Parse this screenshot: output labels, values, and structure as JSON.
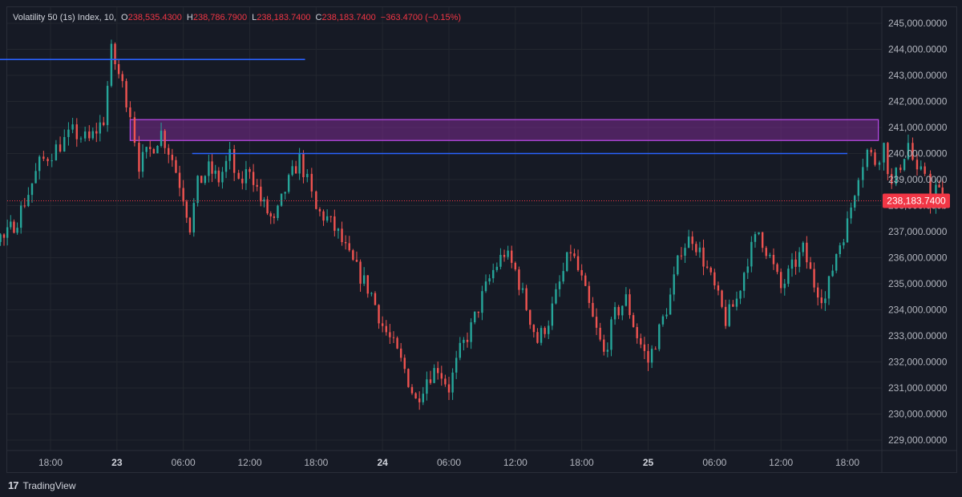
{
  "legend": {
    "symbol": "Volatility 50 (1s) Index, 10,",
    "o_label": "O",
    "o_value": "238,535.4300",
    "h_label": "H",
    "h_value": "238,786.7900",
    "l_label": "L",
    "l_value": "238,183.7400",
    "c_label": "C",
    "c_value": "238,183.7400",
    "change": "−363.4700 (−0.15%)"
  },
  "brand": {
    "logo": "17",
    "name": "TradingView"
  },
  "chart_data": {
    "type": "candlestick",
    "ylim": [
      228500,
      245500
    ],
    "y_ticks": [
      229000,
      230000,
      231000,
      232000,
      233000,
      234000,
      235000,
      236000,
      237000,
      238000,
      239000,
      240000,
      241000,
      242000,
      243000,
      244000,
      245000
    ],
    "y_tick_labels": [
      "229,000.0000",
      "230,000.0000",
      "231,000.0000",
      "232,000.0000",
      "233,000.0000",
      "234,000.0000",
      "235,000.0000",
      "236,000.0000",
      "237,000.0000",
      "238,000.0000",
      "239,000.0000",
      "240,000.0000",
      "241,000.0000",
      "242,000.0000",
      "243,000.0000",
      "244,000.0000",
      "245,000.0000"
    ],
    "x_range_hours": [
      -20.6,
      68.2
    ],
    "x_ticks": [
      {
        "h": -6,
        "label": "18:00"
      },
      {
        "h": 0,
        "label": "23"
      },
      {
        "h": 6,
        "label": "06:00"
      },
      {
        "h": 12,
        "label": "12:00"
      },
      {
        "h": 18,
        "label": "18:00"
      },
      {
        "h": 24,
        "label": "24"
      },
      {
        "h": 30,
        "label": "06:00"
      },
      {
        "h": 36,
        "label": "12:00"
      },
      {
        "h": 42,
        "label": "18:00"
      },
      {
        "h": 48,
        "label": "25"
      },
      {
        "h": 54,
        "label": "06:00"
      },
      {
        "h": 60,
        "label": "12:00"
      },
      {
        "h": 66,
        "label": "18:00"
      }
    ],
    "bold_tick_labels": [
      "23",
      "24",
      "25"
    ],
    "last_price": 238183.74,
    "last_price_label": "238,183.7400",
    "path_points": [
      [
        -20.6,
        235300
      ],
      [
        -19.8,
        236200
      ],
      [
        -18.8,
        235000
      ],
      [
        -17.8,
        234100
      ],
      [
        -16.8,
        234800
      ],
      [
        -15.6,
        234000
      ],
      [
        -14.6,
        235600
      ],
      [
        -13.4,
        236600
      ],
      [
        -11.8,
        237200
      ],
      [
        -10.2,
        236700
      ],
      [
        -9.0,
        237500
      ],
      [
        -8.0,
        238500
      ],
      [
        -7.0,
        239600
      ],
      [
        -5.5,
        240200
      ],
      [
        -4.0,
        240800
      ],
      [
        -2.5,
        240500
      ],
      [
        -1.2,
        241300
      ],
      [
        -0.5,
        243900
      ],
      [
        0.5,
        242600
      ],
      [
        1.2,
        241600
      ],
      [
        2.0,
        239600
      ],
      [
        3.0,
        240100
      ],
      [
        4.0,
        240800
      ],
      [
        5.0,
        239800
      ],
      [
        6.0,
        238400
      ],
      [
        6.6,
        237200
      ],
      [
        7.3,
        238800
      ],
      [
        8.3,
        239400
      ],
      [
        9.2,
        239000
      ],
      [
        10.2,
        239900
      ],
      [
        11.0,
        238700
      ],
      [
        12.0,
        239500
      ],
      [
        13.0,
        238200
      ],
      [
        14.2,
        237300
      ],
      [
        15.2,
        238600
      ],
      [
        16.5,
        239800
      ],
      [
        17.2,
        238900
      ],
      [
        18.0,
        237800
      ],
      [
        19.0,
        237500
      ],
      [
        20.0,
        236900
      ],
      [
        21.0,
        236000
      ],
      [
        22.0,
        235300
      ],
      [
        23.0,
        234600
      ],
      [
        24.0,
        233400
      ],
      [
        25.0,
        232600
      ],
      [
        26.0,
        231700
      ],
      [
        27.0,
        230500
      ],
      [
        28.0,
        231400
      ],
      [
        29.0,
        231800
      ],
      [
        30.0,
        231000
      ],
      [
        31.0,
        232400
      ],
      [
        32.0,
        233300
      ],
      [
        33.0,
        234500
      ],
      [
        34.0,
        235500
      ],
      [
        35.0,
        236200
      ],
      [
        36.0,
        235500
      ],
      [
        37.0,
        234100
      ],
      [
        38.0,
        232800
      ],
      [
        39.0,
        233600
      ],
      [
        40.0,
        235000
      ],
      [
        41.0,
        236300
      ],
      [
        42.0,
        235100
      ],
      [
        43.0,
        233600
      ],
      [
        44.0,
        232300
      ],
      [
        45.0,
        233800
      ],
      [
        46.0,
        234400
      ],
      [
        47.0,
        233000
      ],
      [
        48.0,
        232000
      ],
      [
        49.0,
        233200
      ],
      [
        50.0,
        234500
      ],
      [
        51.0,
        236400
      ],
      [
        52.0,
        236800
      ],
      [
        53.0,
        235900
      ],
      [
        54.0,
        234800
      ],
      [
        55.0,
        233600
      ],
      [
        56.0,
        234400
      ],
      [
        57.0,
        236000
      ],
      [
        58.0,
        237000
      ],
      [
        59.0,
        236000
      ],
      [
        60.0,
        234800
      ],
      [
        61.0,
        235600
      ],
      [
        62.0,
        236300
      ],
      [
        63.0,
        235000
      ],
      [
        64.0,
        234400
      ],
      [
        65.0,
        236200
      ],
      [
        66.0,
        237300
      ],
      [
        67.0,
        239300
      ],
      [
        67.8,
        240100
      ],
      [
        68.5,
        239700
      ],
      [
        69.3,
        240300
      ],
      [
        70.0,
        238700
      ],
      [
        70.8,
        239600
      ],
      [
        71.5,
        240400
      ],
      [
        72.3,
        239100
      ],
      [
        73.0,
        239300
      ],
      [
        73.5,
        238200
      ],
      [
        74.0,
        238700
      ],
      [
        74.6,
        238200
      ]
    ],
    "x_domain_hours": [
      -20.6,
      74.6
    ],
    "annotations": {
      "high_line": {
        "from_h": -20.6,
        "to_h": 17.0,
        "y": 243610,
        "color": "#2962ff"
      },
      "resistance_line": {
        "from_h": 6.8,
        "to_h": 66.0,
        "y": 240000,
        "color": "#2962ff"
      },
      "zone": {
        "from_h": 1.2,
        "to_h": 68.8,
        "y_top": 241300,
        "y_bottom": 240500,
        "fill": "#7b2c8f",
        "stroke": "#b548e0"
      }
    },
    "colors": {
      "up": "#26a69a",
      "down": "#ef5350",
      "grid": "#23272f",
      "axis_text": "#b2b5be",
      "price_label_bg": "#f23645"
    }
  }
}
